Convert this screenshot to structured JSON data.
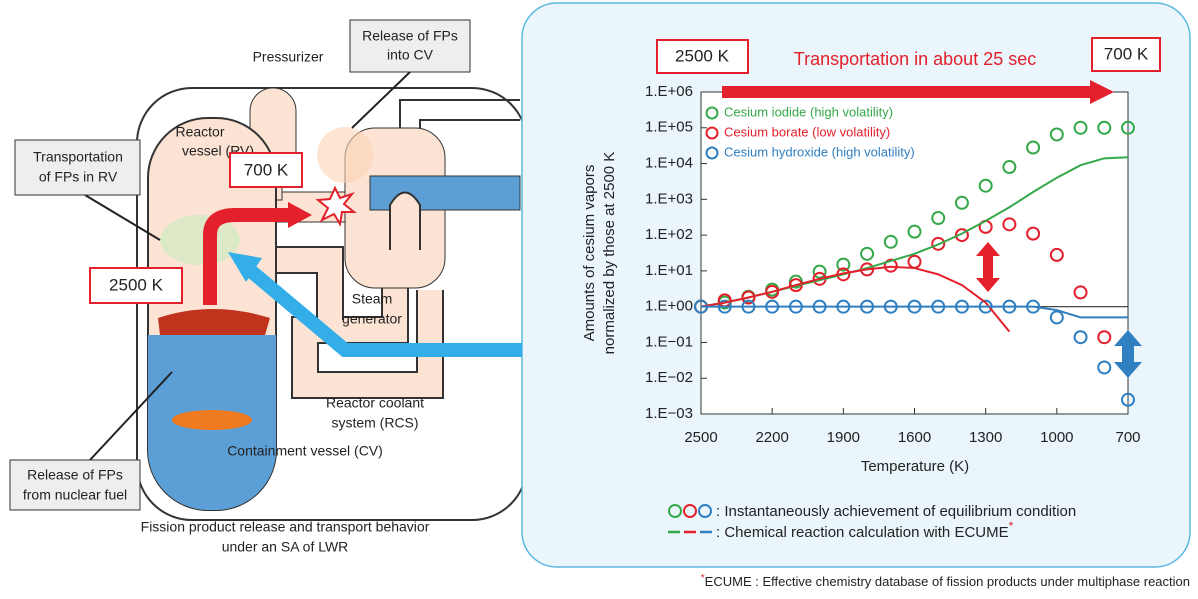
{
  "diagram": {
    "labels": {
      "pressurizer": "Pressurizer",
      "release_cv": [
        "Release of FPs",
        "into CV"
      ],
      "reactor_vessel": [
        "Reactor",
        "vessel (RV)"
      ],
      "transport_rv": [
        "Transportation",
        "of FPs in RV"
      ],
      "temp_700": "700 K",
      "temp_2500": "2500 K",
      "steam_generator": [
        "Steam",
        "generator"
      ],
      "rcs": [
        "Reactor coolant",
        "system (RCS)"
      ],
      "containment": "Containment vessel (CV)",
      "release_fuel": [
        "Release of FPs",
        "from nuclear fuel"
      ]
    },
    "caption": [
      "Fission product release and transport behavior",
      "under an SA of LWR"
    ]
  },
  "chart_data": {
    "type": "scatter",
    "yscale": "log",
    "ylabel": [
      "Amounts of cesium vapors",
      "normalized by those at 2500 K"
    ],
    "xlabel": "Temperature (K)",
    "x": [
      2500,
      2400,
      2300,
      2200,
      2100,
      2000,
      1900,
      1800,
      1700,
      1600,
      1500,
      1400,
      1300,
      1200,
      1100,
      1000,
      900,
      800,
      700
    ],
    "xlim": [
      2500,
      700
    ],
    "xticks": [
      2500,
      2200,
      1900,
      1600,
      1300,
      1000,
      700
    ],
    "ylim": [
      0.001,
      1000000
    ],
    "yticks": [
      {
        "value": 1000000,
        "label": "1.E+06"
      },
      {
        "value": 100000,
        "label": "1.E+05"
      },
      {
        "value": 10000,
        "label": "1.E+04"
      },
      {
        "value": 1000,
        "label": "1.E+03"
      },
      {
        "value": 100,
        "label": "1.E+02"
      },
      {
        "value": 10,
        "label": "1.E+01"
      },
      {
        "value": 1,
        "label": "1.E+00"
      },
      {
        "value": 0.1,
        "label": "1.E−01"
      },
      {
        "value": 0.01,
        "label": "1.E−02"
      },
      {
        "value": 0.001,
        "label": "1.E−03"
      }
    ],
    "reference_line": 1,
    "series": [
      {
        "name": "Cesium iodide (high volatility)",
        "color": "#35a94a",
        "style": "marker",
        "values": [
          1,
          1.3,
          1.9,
          3,
          5,
          9.5,
          15,
          30,
          65,
          125,
          300,
          800,
          2400,
          8000,
          28000,
          65000,
          100000,
          100000,
          100000
        ]
      },
      {
        "name": "Cesium borate (low volatility)",
        "color": "#e3202b",
        "style": "marker",
        "values": [
          1,
          1.5,
          1.8,
          2.6,
          4,
          6,
          8,
          11,
          14,
          18,
          57,
          100,
          170,
          200,
          110,
          28,
          2.5,
          0.14,
          null
        ]
      },
      {
        "name": "Cesium hydroxide (high volatility)",
        "color": "#2f7fc1",
        "style": "marker",
        "values": [
          1,
          1,
          1,
          1,
          1,
          1,
          1,
          1,
          1,
          1,
          1,
          1,
          1,
          1,
          1,
          0.5,
          0.14,
          0.02,
          0.0025
        ]
      },
      {
        "color": "#35a94a",
        "style": "line",
        "values": [
          1,
          1.3,
          1.8,
          2.6,
          3.8,
          5.5,
          8,
          12,
          19,
          30,
          55,
          110,
          250,
          600,
          1600,
          4000,
          9000,
          14000,
          15000
        ]
      },
      {
        "color": "#e3202b",
        "style": "line",
        "values": [
          1,
          1.3,
          1.8,
          2.6,
          4,
          6,
          8.5,
          11,
          13,
          12,
          8,
          4,
          1.3,
          0.2,
          null,
          null,
          null,
          null,
          null
        ]
      },
      {
        "color": "#2f7fc1",
        "style": "line",
        "values": [
          1,
          1,
          1,
          1,
          1,
          1,
          1,
          1,
          1,
          1,
          1,
          1,
          1,
          1,
          1,
          0.8,
          0.5,
          0.5,
          0.5
        ]
      }
    ],
    "annotations": {
      "start": "2500 K",
      "end": "700 K",
      "transport": "Transportation in about 25 sec"
    },
    "legend_bottom": {
      "markers_text": ": Instantaneously achievement of equilibrium condition",
      "lines_text": ": Chemical reaction calculation with ECUME",
      "asterisk": "*"
    },
    "footnote": {
      "asterisk": "*",
      "text": "ECUME : Effective chemistry database of fission products under multiphase reaction"
    }
  }
}
